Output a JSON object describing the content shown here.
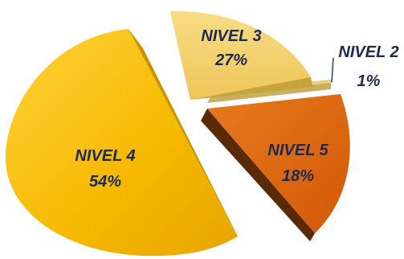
{
  "chart_data": {
    "type": "pie",
    "title": "",
    "categories": [
      "NIVEL 2",
      "NIVEL 3",
      "NIVEL 4",
      "NIVEL 5"
    ],
    "values": [
      1,
      27,
      54,
      18
    ],
    "value_labels": [
      "1%",
      "27%",
      "54%",
      "18%"
    ],
    "exploded": true,
    "colors": {
      "NIVEL 2": "#e8cf7e",
      "NIVEL 3": "#f2d06a",
      "NIVEL 4": "#f6b800",
      "NIVEL 5": "#dd640c"
    }
  }
}
